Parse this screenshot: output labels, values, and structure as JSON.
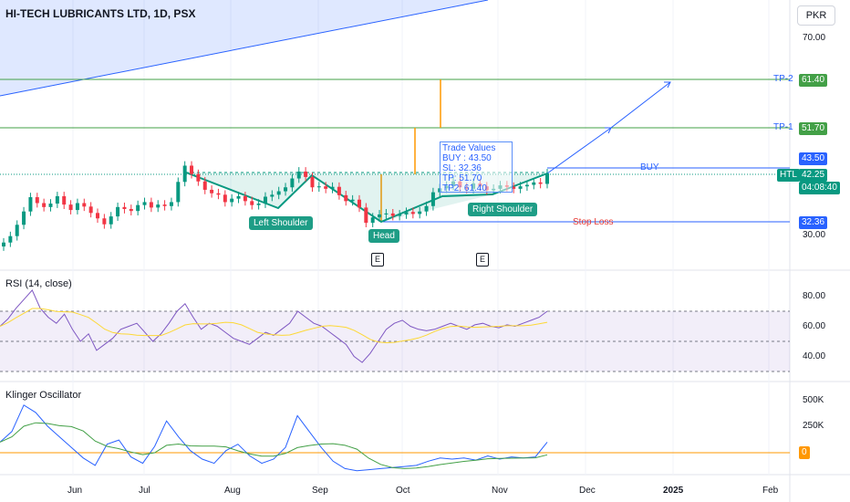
{
  "header": {
    "title": "HI-TECH LUBRICANTS LTD, 1D, PSX",
    "currency": "PKR"
  },
  "price_axis": {
    "ticks": [
      "70.00",
      "30.00"
    ]
  },
  "levels": {
    "tp2": {
      "label": "TP-2",
      "value": "61.40",
      "color": "#43a047"
    },
    "tp1": {
      "label": "TP-1",
      "value": "51.70",
      "color": "#43a047"
    },
    "buy": {
      "label": "BUY",
      "value": "43.50",
      "color": "#2962ff"
    },
    "stop": {
      "label": "Stop Loss",
      "value": "32.36",
      "color": "#e53935"
    },
    "last": {
      "symbol": "HTL",
      "value": "42.25",
      "countdown": "04:08:40",
      "color": "#089981"
    }
  },
  "trade_box": {
    "title": "Trade Values",
    "lines": [
      "BUY : 43.50",
      "SL: 32.36",
      "TP: 51.70",
      "TP2: 61.40"
    ]
  },
  "pattern": {
    "left": "Left Shoulder",
    "head": "Head",
    "right": "Right Shoulder"
  },
  "events": [
    "E",
    "E"
  ],
  "rsi": {
    "title": "RSI (14, close)",
    "ticks": [
      "80.00",
      "60.00",
      "40.00"
    ]
  },
  "kvo": {
    "title": "Klinger Oscillator",
    "ticks": [
      "500K",
      "250K"
    ],
    "zero": "0"
  },
  "months": [
    "Jun",
    "Jul",
    "Aug",
    "Sep",
    "Oct",
    "Nov",
    "Dec",
    "2025",
    "Feb"
  ],
  "chart_data": {
    "type": "candlestick",
    "title": "HI-TECH LUBRICANTS LTD, 1D, PSX",
    "ylim": [
      26,
      74
    ],
    "x_axis": [
      "Jun",
      "Jul",
      "Aug",
      "Sep",
      "Oct",
      "Nov",
      "Dec",
      "2025",
      "Feb"
    ],
    "series": [
      {
        "name": "HTL",
        "values": [
          28.2,
          29.5,
          31.8,
          34.5,
          37.4,
          36.2,
          35.4,
          36.1,
          37.6,
          35.9,
          34.8,
          36.2,
          35.5,
          34.2,
          33.1,
          31.9,
          33.5,
          35.4,
          35.0,
          34.6,
          35.8,
          36.4,
          35.3,
          35.9,
          35.6,
          36.4,
          40.5,
          43.8,
          42.1,
          40.6,
          38.9,
          38.2,
          37.9,
          36.4,
          37.1,
          37.6,
          36.6,
          35.8,
          36.1,
          37.5,
          37.9,
          38.6,
          39.4,
          41.2,
          42.6,
          41.5,
          39.4,
          39.6,
          39.1,
          39.5,
          37.8,
          36.6,
          36.9,
          35.3,
          32.2,
          33.3,
          33.9,
          34.1,
          33.6,
          33.9,
          34.4,
          34.0,
          34.5,
          35.6,
          38.4,
          39.2,
          39.7,
          40.6,
          39.4,
          39.1,
          40.2,
          39.6,
          38.8,
          39.1,
          39.8,
          39.5,
          39.1,
          39.6,
          39.9,
          40.4,
          40.1,
          42.25
        ]
      }
    ],
    "indicators": {
      "rsi": {
        "name": "RSI (14, close)",
        "ylim": [
          20,
          90
        ],
        "bands": [
          70,
          50,
          30
        ],
        "values": [
          60,
          65,
          72,
          78,
          84,
          72,
          66,
          62,
          68,
          58,
          50,
          55,
          44,
          48,
          52,
          58,
          60,
          62,
          56,
          50,
          55,
          62,
          70,
          75,
          66,
          58,
          62,
          60,
          56,
          52,
          50,
          48,
          52,
          56,
          54,
          58,
          62,
          70,
          66,
          62,
          60,
          56,
          52,
          48,
          40,
          36,
          42,
          50,
          58,
          62,
          64,
          60,
          58,
          57,
          58,
          60,
          62,
          60,
          58,
          61,
          62,
          60,
          59,
          61,
          60,
          62,
          64,
          66,
          70
        ]
      },
      "kvo": {
        "name": "Klinger Oscillator",
        "ylim": [
          -200000,
          550000
        ],
        "values": [
          100000,
          200000,
          450000,
          380000,
          250000,
          150000,
          50000,
          -50000,
          -120000,
          80000,
          120000,
          -40000,
          -100000,
          60000,
          300000,
          150000,
          20000,
          -60000,
          -100000,
          20000,
          80000,
          -30000,
          -100000,
          -60000,
          50000,
          350000,
          200000,
          50000,
          -80000,
          -150000,
          -170000,
          -160000,
          -150000,
          -140000,
          -130000,
          -120000,
          -80000,
          -50000,
          -60000,
          -50000,
          -70000,
          -30000,
          -60000,
          -40000,
          -50000,
          -40000,
          100000
        ]
      }
    }
  }
}
